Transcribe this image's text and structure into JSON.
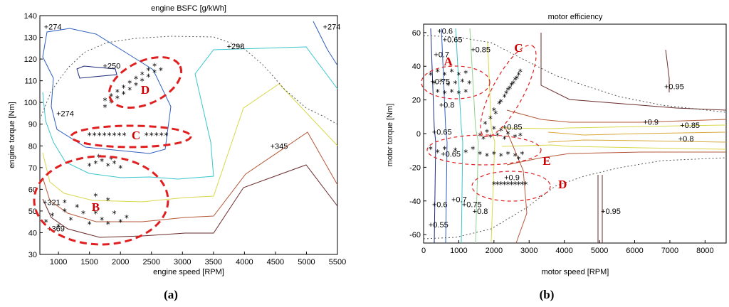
{
  "chart_data": [
    {
      "type": "contour",
      "title": "engine BSFC [g/kWh]",
      "xlabel": "engine speed [RPM]",
      "ylabel": "engine torque [Nm]",
      "xlim": [
        700,
        5500
      ],
      "ylim": [
        30,
        140
      ],
      "xticks": [
        1000,
        1500,
        2000,
        2500,
        3000,
        3500,
        4000,
        4500,
        5000,
        5500
      ],
      "yticks": [
        30,
        40,
        50,
        60,
        70,
        80,
        90,
        100,
        110,
        120,
        130,
        140
      ],
      "caption": "(a)",
      "contour_labels": [
        {
          "text": "274",
          "x": 800,
          "y": 135
        },
        {
          "text": "274",
          "x": 5300,
          "y": 135
        },
        {
          "text": "298",
          "x": 3750,
          "y": 126
        },
        {
          "text": "250",
          "x": 1750,
          "y": 117
        },
        {
          "text": "274",
          "x": 1000,
          "y": 95
        },
        {
          "text": "345",
          "x": 4450,
          "y": 80
        },
        {
          "text": "321",
          "x": 780,
          "y": 54
        },
        {
          "text": "369",
          "x": 850,
          "y": 42
        }
      ],
      "regions": [
        {
          "label": "D",
          "x": 2400,
          "y": 106
        },
        {
          "label": "C",
          "x": 2250,
          "y": 85
        },
        {
          "label": "B",
          "x": 1600,
          "y": 52
        }
      ],
      "operating_points": [
        [
          1750,
          98
        ],
        [
          1850,
          100
        ],
        [
          1950,
          102
        ],
        [
          2050,
          104
        ],
        [
          2150,
          106
        ],
        [
          2250,
          108
        ],
        [
          2350,
          110
        ],
        [
          2450,
          112
        ],
        [
          2550,
          114
        ],
        [
          2650,
          115
        ],
        [
          1750,
          101
        ],
        [
          1850,
          103
        ],
        [
          1950,
          105
        ],
        [
          2050,
          107
        ],
        [
          2150,
          109
        ],
        [
          2250,
          111
        ],
        [
          2350,
          113
        ],
        [
          2450,
          115
        ],
        [
          2550,
          117
        ],
        [
          1500,
          85
        ],
        [
          1580,
          85
        ],
        [
          1660,
          85
        ],
        [
          1740,
          85
        ],
        [
          1820,
          85
        ],
        [
          1900,
          85
        ],
        [
          1980,
          85
        ],
        [
          2060,
          85
        ],
        [
          2420,
          85
        ],
        [
          2500,
          85
        ],
        [
          2580,
          85
        ],
        [
          2660,
          85
        ],
        [
          2740,
          85
        ],
        [
          1500,
          71
        ],
        [
          1600,
          72
        ],
        [
          1700,
          73
        ],
        [
          1800,
          71
        ],
        [
          1900,
          72
        ],
        [
          2000,
          70
        ],
        [
          1650,
          75
        ],
        [
          1850,
          74
        ],
        [
          800,
          45
        ],
        [
          900,
          48
        ],
        [
          1000,
          43
        ],
        [
          1100,
          50
        ],
        [
          1200,
          46
        ],
        [
          1300,
          52
        ],
        [
          1400,
          49
        ],
        [
          1500,
          44
        ],
        [
          1600,
          49
        ],
        [
          1700,
          46
        ],
        [
          1800,
          44
        ],
        [
          1900,
          49
        ],
        [
          2000,
          45
        ],
        [
          2100,
          47
        ],
        [
          1600,
          57
        ],
        [
          1800,
          55
        ],
        [
          1100,
          54
        ]
      ]
    },
    {
      "type": "contour",
      "title": "motor efficiency",
      "xlabel": "motor speed [RPM]",
      "ylabel": "motor torque [Nm]",
      "xlim": [
        0,
        8600
      ],
      "ylim": [
        -65,
        65
      ],
      "xticks": [
        0,
        1000,
        2000,
        3000,
        4000,
        5000,
        6000,
        7000,
        8000
      ],
      "yticks": [
        -60,
        -40,
        -20,
        0,
        20,
        40,
        60
      ],
      "caption": "(b)",
      "contour_labels": [
        {
          "text": "0.6",
          "x": 450,
          "y": 61
        },
        {
          "text": "0.65",
          "x": 600,
          "y": 56
        },
        {
          "text": "0.85",
          "x": 1400,
          "y": 50
        },
        {
          "text": "0.7",
          "x": 350,
          "y": 47
        },
        {
          "text": "0.75",
          "x": 250,
          "y": 31
        },
        {
          "text": "0.8",
          "x": 500,
          "y": 17
        },
        {
          "text": "0.95",
          "x": 6900,
          "y": 28
        },
        {
          "text": "0.9",
          "x": 6300,
          "y": 7
        },
        {
          "text": "0.85",
          "x": 7350,
          "y": 5
        },
        {
          "text": "0.8",
          "x": 7300,
          "y": -3
        },
        {
          "text": "0.65",
          "x": 300,
          "y": 1
        },
        {
          "text": "0.85",
          "x": 2300,
          "y": 4
        },
        {
          "text": "0.65",
          "x": 550,
          "y": -12
        },
        {
          "text": "0.9",
          "x": 2350,
          "y": -26
        },
        {
          "text": "0.7",
          "x": 850,
          "y": -39
        },
        {
          "text": "0.75",
          "x": 1150,
          "y": -42
        },
        {
          "text": "0.6",
          "x": 300,
          "y": -42
        },
        {
          "text": "0.8",
          "x": 1450,
          "y": -46
        },
        {
          "text": "0.95",
          "x": 5100,
          "y": -46
        },
        {
          "text": "0.55",
          "x": 200,
          "y": -54
        }
      ],
      "regions": [
        {
          "label": "A",
          "x": 700,
          "y": 43
        },
        {
          "label": "C",
          "x": 2700,
          "y": 51
        },
        {
          "label": "E",
          "x": 3500,
          "y": -16
        },
        {
          "label": "D",
          "x": 3950,
          "y": -30
        }
      ],
      "operating_points": [
        [
          200,
          35
        ],
        [
          400,
          37
        ],
        [
          600,
          35
        ],
        [
          800,
          37
        ],
        [
          1000,
          35
        ],
        [
          1200,
          36
        ],
        [
          300,
          30
        ],
        [
          500,
          31
        ],
        [
          700,
          29
        ],
        [
          900,
          30
        ],
        [
          1100,
          31
        ],
        [
          1300,
          30
        ],
        [
          400,
          25
        ],
        [
          600,
          24
        ],
        [
          800,
          25
        ],
        [
          1000,
          24
        ],
        [
          1200,
          25
        ],
        [
          2000,
          14
        ],
        [
          2150,
          18
        ],
        [
          2300,
          22
        ],
        [
          2400,
          26
        ],
        [
          2500,
          29
        ],
        [
          2600,
          32
        ],
        [
          2700,
          35
        ],
        [
          2750,
          37
        ],
        [
          2200,
          19
        ],
        [
          2350,
          24
        ],
        [
          2450,
          27
        ],
        [
          2550,
          30
        ],
        [
          2650,
          33
        ],
        [
          1600,
          -1
        ],
        [
          1700,
          -3
        ],
        [
          1800,
          1
        ],
        [
          1900,
          -2
        ],
        [
          2000,
          3
        ],
        [
          2100,
          -1
        ],
        [
          2200,
          2
        ],
        [
          2300,
          -3
        ],
        [
          2400,
          0
        ],
        [
          2600,
          -2
        ],
        [
          2750,
          -1
        ],
        [
          1750,
          6
        ],
        [
          1900,
          9
        ],
        [
          2050,
          12
        ],
        [
          200,
          -9
        ],
        [
          400,
          -11
        ],
        [
          600,
          -9
        ],
        [
          900,
          -10
        ],
        [
          1200,
          -11
        ],
        [
          1400,
          -9
        ],
        [
          1600,
          -12
        ],
        [
          1800,
          -13
        ],
        [
          2000,
          -12
        ],
        [
          2200,
          -13
        ],
        [
          2400,
          -12
        ],
        [
          2600,
          -13
        ],
        [
          2800,
          -12
        ],
        [
          2700,
          -15
        ],
        [
          2000,
          -30
        ],
        [
          2100,
          -30
        ],
        [
          2200,
          -30
        ],
        [
          2300,
          -30
        ],
        [
          2400,
          -30
        ],
        [
          2500,
          -30
        ],
        [
          2600,
          -30
        ],
        [
          2700,
          -30
        ],
        [
          2800,
          -30
        ],
        [
          2900,
          -30
        ]
      ]
    }
  ]
}
